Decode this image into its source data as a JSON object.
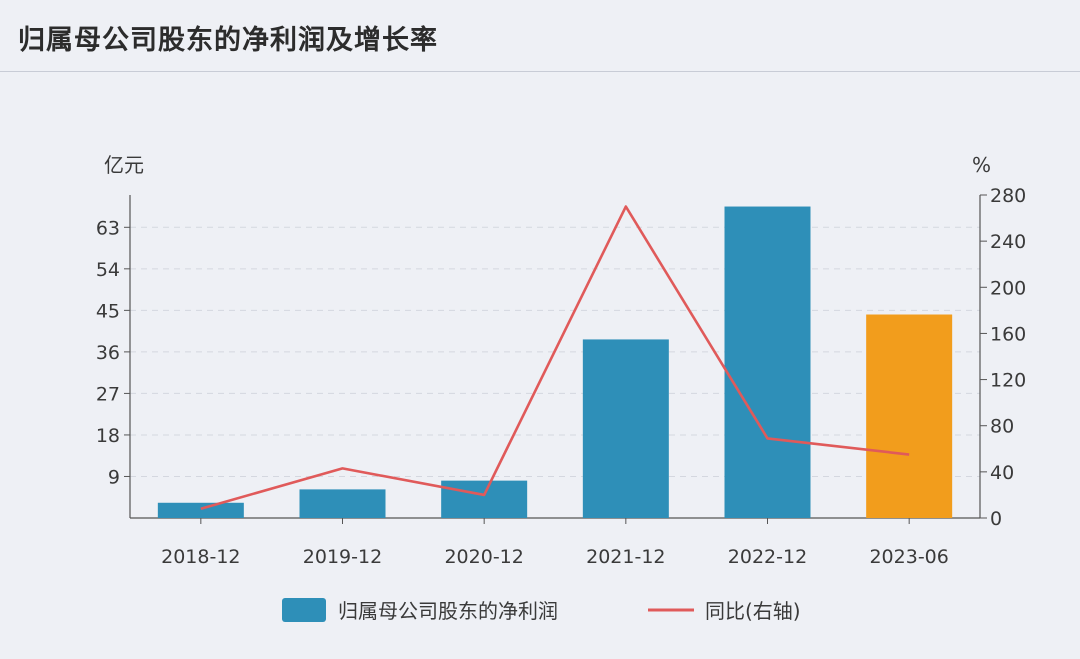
{
  "title": "归属母公司股东的净利润及增长率",
  "chart_data": {
    "type": "bar",
    "title": "归属母公司股东的净利润及增长率",
    "categories": [
      "2018-12",
      "2019-12",
      "2020-12",
      "2021-12",
      "2022-12",
      "2023-06"
    ],
    "left_unit": "亿元",
    "right_unit": "%",
    "left_ticks": [
      9,
      18,
      27,
      36,
      45,
      54,
      63
    ],
    "right_ticks": [
      0,
      40,
      80,
      120,
      160,
      200,
      240,
      280
    ],
    "ylim_left": [
      0,
      70
    ],
    "ylim_right": [
      0,
      280
    ],
    "series": [
      {
        "name": "归属母公司股东的净利润",
        "type": "bar",
        "axis": "left",
        "values": [
          3.3,
          6.2,
          8.1,
          38.7,
          67.5,
          44.1
        ],
        "colors": [
          "#2e8fb8",
          "#2e8fb8",
          "#2e8fb8",
          "#2e8fb8",
          "#2e8fb8",
          "#f29d1c"
        ]
      },
      {
        "name": "同比(右轴)",
        "type": "line",
        "axis": "right",
        "color": "#e05a5a",
        "values": [
          8,
          43,
          20,
          270,
          69,
          55
        ]
      }
    ],
    "legend": [
      {
        "label": "归属母公司股东的净利润",
        "color": "#2e8fb8",
        "kind": "bar"
      },
      {
        "label": "同比(右轴)",
        "color": "#e05a5a",
        "kind": "line"
      }
    ],
    "grid": "horizontal-dashed",
    "legend_position": "bottom"
  }
}
